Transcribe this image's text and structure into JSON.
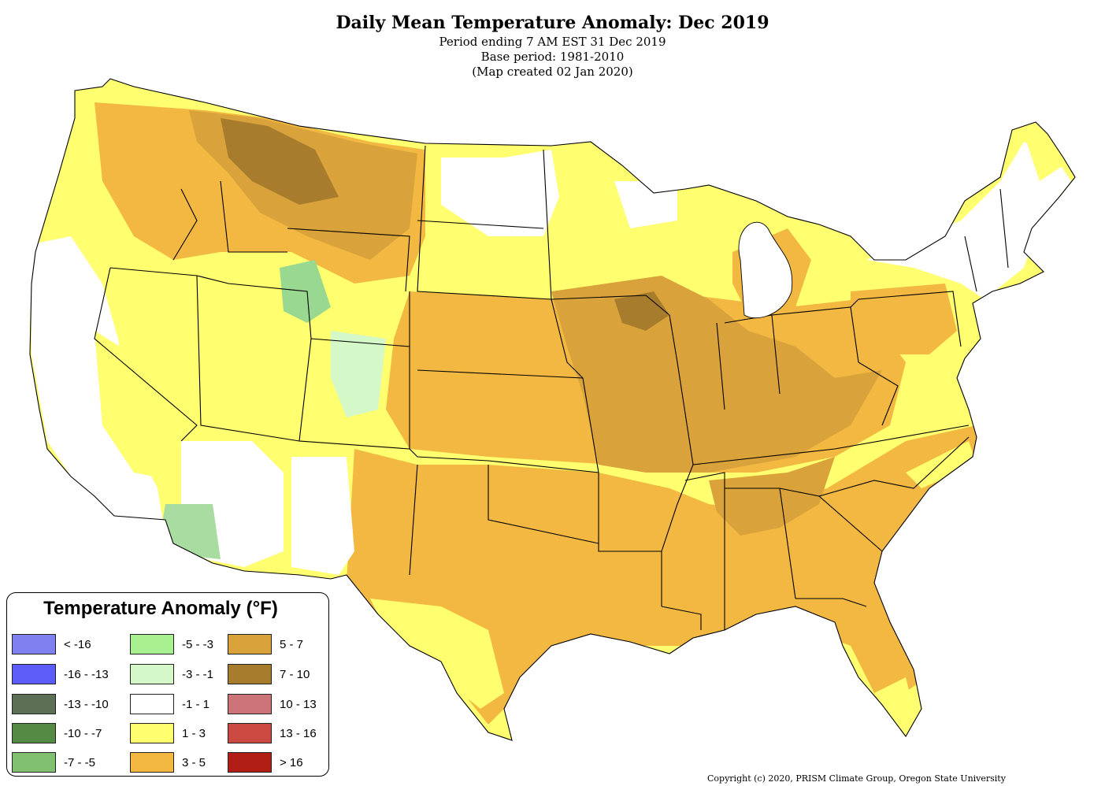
{
  "header": {
    "title": "Daily Mean Temperature Anomaly: Dec 2019",
    "line1": "Period ending 7 AM EST 31 Dec 2019",
    "line2": "Base period: 1981-2010",
    "line3": "(Map created 02 Jan 2020)"
  },
  "legend": {
    "title": "Temperature Anomaly (°F)",
    "items": [
      {
        "label": "< -16",
        "color": "#8080f0"
      },
      {
        "label": "-16 - -13",
        "color": "#5c5cf8"
      },
      {
        "label": "-13 - -10",
        "color": "#5d7055"
      },
      {
        "label": "-10 - -7",
        "color": "#548a44"
      },
      {
        "label": "-7 - -5",
        "color": "#80c070"
      },
      {
        "label": "-5 - -3",
        "color": "#a8f090"
      },
      {
        "label": "-3 - -1",
        "color": "#d4f8c8"
      },
      {
        "label": "-1 - 1",
        "color": "#ffffff"
      },
      {
        "label": "1 - 3",
        "color": "#ffff70"
      },
      {
        "label": "3 - 5",
        "color": "#f2b842"
      },
      {
        "label": "5 - 7",
        "color": "#d9a23a"
      },
      {
        "label": "7 - 10",
        "color": "#a77c2c"
      },
      {
        "label": "10 - 13",
        "color": "#cc7478"
      },
      {
        "label": "13 - 16",
        "color": "#cc4a42"
      },
      {
        "label": "> 16",
        "color": "#b01e16"
      }
    ]
  },
  "copyright": "Copyright (c) 2020, PRISM Climate Group, Oregon State University"
}
